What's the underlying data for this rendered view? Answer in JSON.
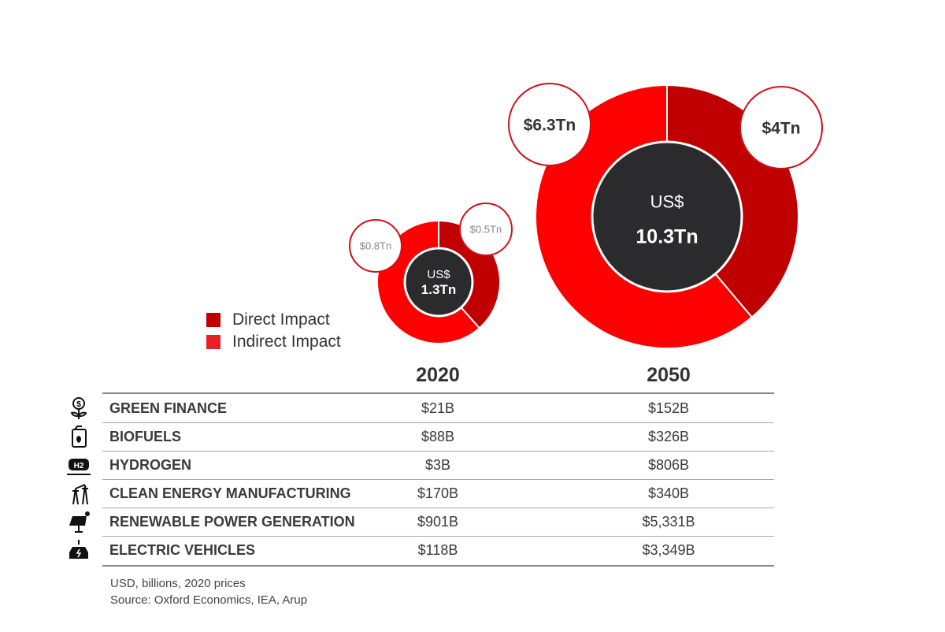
{
  "chart_data": {
    "type": "donut",
    "charts": [
      {
        "year": "2020",
        "center_label": "US$",
        "center_value": "1.3Tn",
        "total": 1.3,
        "slices": [
          {
            "name": "Direct Impact",
            "value": 0.5,
            "label": "$0.5Tn"
          },
          {
            "name": "Indirect Impact",
            "value": 0.8,
            "label": "$0.8Tn"
          }
        ]
      },
      {
        "year": "2050",
        "center_label": "US$",
        "center_value": "10.3Tn",
        "total": 10.3,
        "slices": [
          {
            "name": "Direct Impact",
            "value": 4,
            "label": "$4Tn"
          },
          {
            "name": "Indirect Impact",
            "value": 6.3,
            "label": "$6.3Tn"
          }
        ]
      }
    ],
    "legend": [
      {
        "name": "Direct Impact",
        "color": "#c00000"
      },
      {
        "name": "Indirect Impact",
        "color": "#e8202a"
      }
    ],
    "legend_placement": "left"
  },
  "colors": {
    "direct": "#c00000",
    "indirect": "#ff0000",
    "center": "#2b2b2d"
  },
  "table": {
    "columns": [
      "2020",
      "2050"
    ],
    "rows": [
      {
        "icon": "money-flower-icon",
        "label": "GREEN FINANCE",
        "v2020": "$21B",
        "v2050": "$152B"
      },
      {
        "icon": "fuel-can-leaf-icon",
        "label": "BIOFUELS",
        "v2020": "$88B",
        "v2050": "$326B"
      },
      {
        "icon": "hydrogen-tank-icon",
        "label": "HYDROGEN",
        "v2020": "$3B",
        "v2050": "$806B"
      },
      {
        "icon": "power-pylon-icon",
        "label": "CLEAN ENERGY MANUFACTURING",
        "v2020": "$170B",
        "v2050": "$340B"
      },
      {
        "icon": "solar-panel-icon",
        "label": "RENEWABLE POWER GENERATION",
        "v2020": "$901B",
        "v2050": "$5,331B"
      },
      {
        "icon": "electric-car-icon",
        "label": "ELECTRIC VEHICLES",
        "v2020": "$118B",
        "v2050": "$3,349B"
      }
    ]
  },
  "footnote": {
    "units": "USD, billions, 2020 prices",
    "source": "Source: Oxford Economics, IEA, Arup"
  }
}
